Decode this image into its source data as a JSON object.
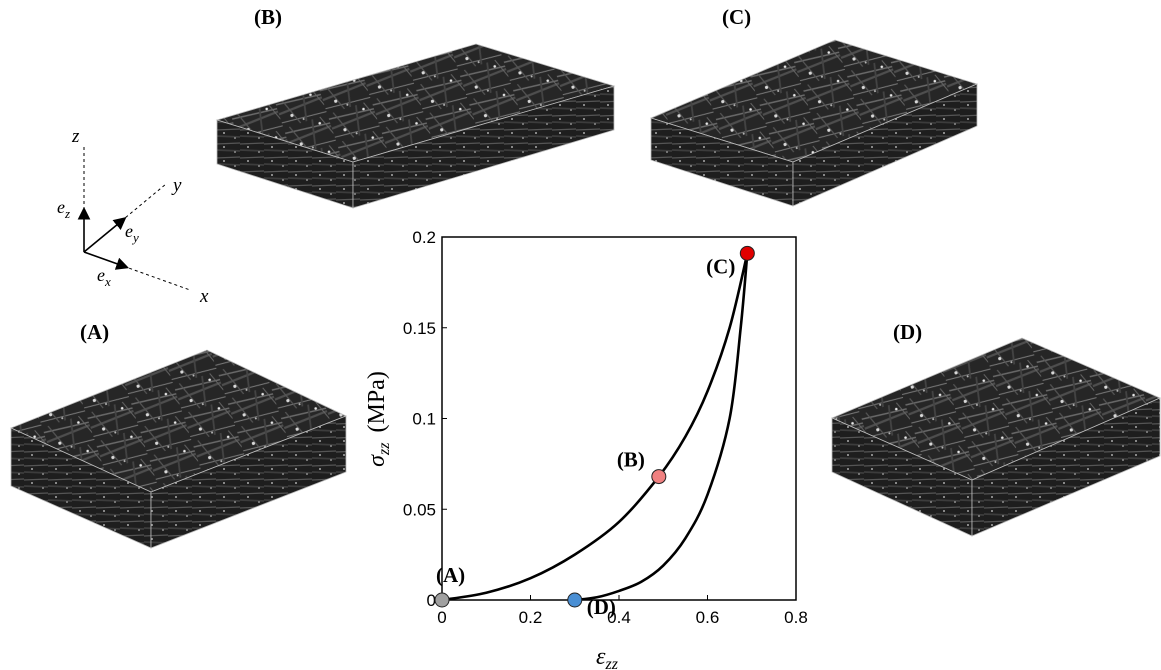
{
  "labels": {
    "a": "(A)",
    "b": "(B)",
    "c": "(C)",
    "d": "(D)"
  },
  "axes_icon": {
    "z": "z",
    "y": "y",
    "x": "x",
    "ez": "e",
    "ez_sub": "z",
    "ey": "e",
    "ey_sub": "y",
    "ex": "e",
    "ex_sub": "x"
  },
  "chart_data": {
    "type": "line",
    "xlabel": "ε",
    "xlabel_sub": "zz",
    "ylabel": "σ",
    "ylabel_sub": "zz",
    "ylabel_unit": "(MPa)",
    "xlim": [
      0,
      0.8
    ],
    "ylim": [
      0,
      0.2
    ],
    "xticks": [
      "0",
      "0.2",
      "0.4",
      "0.6",
      "0.8"
    ],
    "yticks": [
      "0",
      "0.05",
      "0.1",
      "0.15",
      "0.2"
    ],
    "series": [
      {
        "x": [
          0,
          0.1,
          0.2,
          0.3,
          0.4,
          0.49,
          0.55,
          0.6,
          0.65,
          0.69
        ],
        "y": [
          0,
          0.004,
          0.012,
          0.025,
          0.043,
          0.068,
          0.09,
          0.115,
          0.15,
          0.191
        ]
      },
      {
        "x": [
          0.69,
          0.675,
          0.65,
          0.6,
          0.55,
          0.5,
          0.45,
          0.4,
          0.35,
          0.3
        ],
        "y": [
          0.191,
          0.15,
          0.1,
          0.058,
          0.034,
          0.019,
          0.01,
          0.005,
          0.0015,
          0
        ]
      }
    ],
    "points": [
      {
        "label": "(A)",
        "x": 0,
        "y": 0,
        "color": "#a0a0a0"
      },
      {
        "label": "(B)",
        "x": 0.49,
        "y": 0.068,
        "color": "#f08080"
      },
      {
        "label": "(C)",
        "x": 0.69,
        "y": 0.191,
        "color": "#e00000"
      },
      {
        "label": "(D)",
        "x": 0.3,
        "y": 0,
        "color": "#4a8fd4"
      }
    ]
  }
}
